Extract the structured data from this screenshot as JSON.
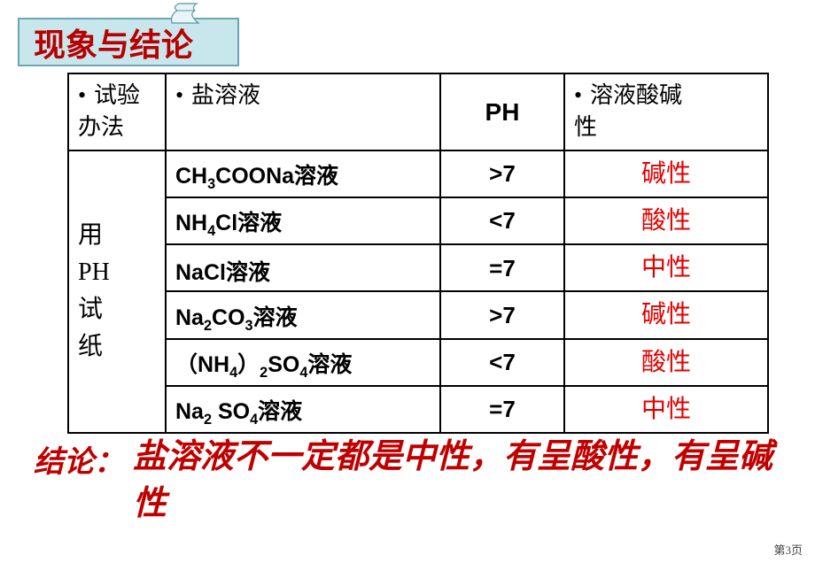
{
  "title": "现象与结论",
  "table": {
    "headers": {
      "method": "试验办法",
      "solution": "盐溶液",
      "ph": "PH",
      "property": "溶液酸碱性"
    },
    "method_label": "用\nPH\n试\n纸",
    "rows": [
      {
        "solution_html": "CH<sub>3</sub>COONa溶液",
        "ph": ">7",
        "result": "碱性"
      },
      {
        "solution_html": "NH<sub>4</sub>Cl溶液",
        "ph": "<7",
        "result": "酸性"
      },
      {
        "solution_html": "NaCl溶液",
        "ph": "=7",
        "result": "中性"
      },
      {
        "solution_html": "Na<sub>2</sub>CO<sub>3</sub>溶液",
        "ph": ">7",
        "result": "碱性"
      },
      {
        "solution_html": "（NH<sub>4</sub>）<sub>2</sub>SO<sub>4</sub>溶液",
        "ph": "<7",
        "result": "酸性"
      },
      {
        "solution_html": "Na<sub>2</sub> SO<sub>4</sub>溶液",
        "ph": "=7",
        "result": "中性"
      }
    ]
  },
  "conclusion": {
    "label": "结论：",
    "text": "盐溶液不一定都是中性，有呈酸性，有呈碱性"
  },
  "page_label": "第3页",
  "colors": {
    "title_bg": "#c7e7ed",
    "title_border": "#6aa6b5",
    "title_text": "#b80000",
    "result_text": "#e00000",
    "conclusion_text": "#c00000",
    "border": "#000000"
  },
  "col_widths": [
    "110px",
    "310px",
    "140px",
    "230px"
  ]
}
